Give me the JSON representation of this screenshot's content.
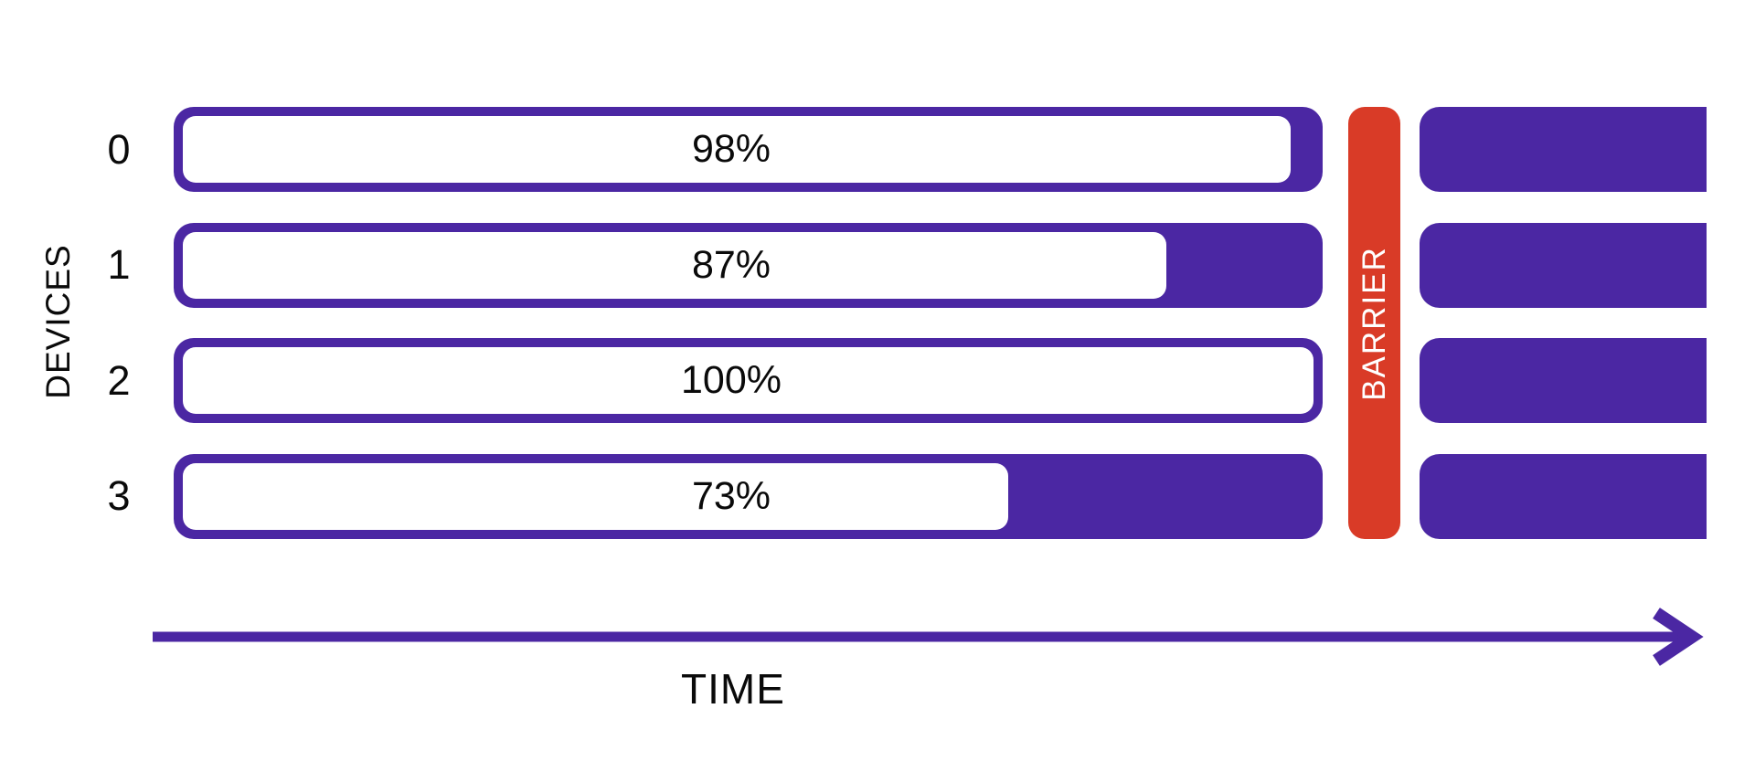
{
  "y_axis_label": "DEVICES",
  "x_axis_label": "TIME",
  "barrier": {
    "label": "BARRIER"
  },
  "devices": [
    {
      "id": "0",
      "progress_label": "98%",
      "progress_pct": 98
    },
    {
      "id": "1",
      "progress_label": "87%",
      "progress_pct": 87
    },
    {
      "id": "2",
      "progress_label": "100%",
      "progress_pct": 100
    },
    {
      "id": "3",
      "progress_label": "73%",
      "progress_pct": 73
    }
  ],
  "colors": {
    "purple": "#4B27A3",
    "red": "#D93B27",
    "text": "#0A0A0A",
    "fill_background": "#FFFFFF"
  },
  "chart_data": {
    "type": "bar",
    "title": "",
    "categories": [
      "0",
      "1",
      "2",
      "3"
    ],
    "values": [
      98,
      87,
      100,
      73
    ],
    "xlabel": "TIME",
    "ylabel": "DEVICES",
    "annotations": [
      "BARRIER"
    ],
    "legend_position": "none",
    "grid": false
  }
}
